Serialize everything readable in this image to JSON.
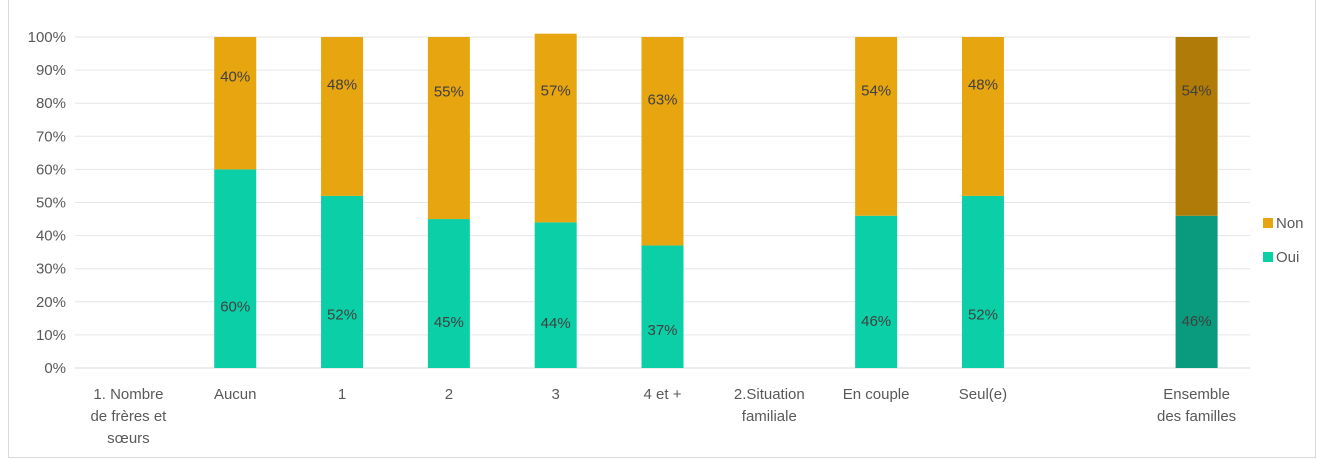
{
  "chart_data": {
    "type": "bar",
    "stacked": true,
    "categories": [
      [
        "1. Nombre",
        "de frères et",
        "sœurs"
      ],
      [
        "Aucun"
      ],
      [
        "1"
      ],
      [
        "2"
      ],
      [
        "3"
      ],
      [
        "4 et +"
      ],
      [
        "2.Situation",
        "familiale"
      ],
      [
        "En couple"
      ],
      [
        "Seul(e)"
      ],
      [
        ""
      ],
      [
        "Ensemble",
        "des familles"
      ]
    ],
    "series": [
      {
        "name": "Oui",
        "color": "#0bcfa7",
        "highlight_color": "#0a9b7e",
        "values": [
          null,
          60,
          52,
          45,
          44,
          37,
          null,
          46,
          52,
          null,
          46
        ],
        "labels": [
          "",
          "60%",
          "52%",
          "45%",
          "44%",
          "37%",
          "",
          "46%",
          "52%",
          "",
          "46%"
        ]
      },
      {
        "name": "Non",
        "color": "#e7a50f",
        "highlight_color": "#b07b07",
        "values": [
          null,
          40,
          48,
          55,
          57,
          63,
          null,
          54,
          48,
          null,
          54
        ],
        "labels": [
          "",
          "40%",
          "48%",
          "55%",
          "57%",
          "63%",
          "",
          "54%",
          "48%",
          "",
          "54%"
        ]
      }
    ],
    "highlight_index": 10,
    "ylim": [
      0,
      100
    ],
    "y_ticks": [
      "0%",
      "10%",
      "20%",
      "30%",
      "40%",
      "50%",
      "60%",
      "70%",
      "80%",
      "90%",
      "100%"
    ],
    "grid": true,
    "legend": {
      "placement": "right",
      "entries": [
        {
          "name": "Non",
          "color": "#e7a50f"
        },
        {
          "name": "Oui",
          "color": "#0bcfa7"
        }
      ]
    },
    "title": "",
    "xlabel": "",
    "ylabel": ""
  }
}
